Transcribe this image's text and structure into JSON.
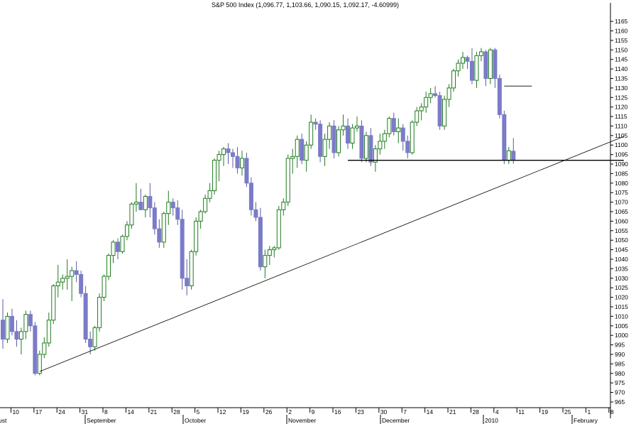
{
  "chart_data": {
    "type": "candlestick",
    "title": "S&P 500 Index (1,096.77, 1,103.66, 1,090.15, 1,092.17, -4.60999)",
    "ylim": [
      962,
      1171
    ],
    "y_ticks": [
      965,
      970,
      975,
      980,
      985,
      990,
      995,
      1000,
      1005,
      1010,
      1015,
      1020,
      1025,
      1030,
      1035,
      1040,
      1045,
      1050,
      1055,
      1060,
      1065,
      1070,
      1075,
      1080,
      1085,
      1090,
      1095,
      1100,
      1105,
      1110,
      1115,
      1120,
      1125,
      1130,
      1135,
      1140,
      1145,
      1150,
      1155,
      1160,
      1165
    ],
    "x_tick_labels": [
      "10",
      "17",
      "24",
      "31",
      "8",
      "14",
      "21",
      "28",
      "5",
      "12",
      "19",
      "26",
      "2",
      "9",
      "16",
      "23",
      "30",
      "7",
      "14",
      "21",
      "28",
      "4",
      "11",
      "19",
      "25",
      "1",
      "8"
    ],
    "month_labels": [
      "ust",
      "September",
      "October",
      "November",
      "December",
      "2010",
      "February"
    ],
    "colors": {
      "up": "#1e7b1e",
      "down": "#7b7bc8",
      "line": "#000000",
      "grid_text": "#000000"
    },
    "candles": [
      [
        1008.0,
        1019.0,
        993.0,
        998.0
      ],
      [
        998.0,
        1012.0,
        996.0,
        1010.0
      ],
      [
        1010.0,
        1014.0,
        1000.0,
        1002.0
      ],
      [
        1002.0,
        1008.0,
        994.0,
        998.0
      ],
      [
        998.0,
        1004.0,
        990.0,
        1002.0
      ],
      [
        1002.0,
        1013.0,
        998.0,
        1011.0
      ],
      [
        1011.0,
        1013.0,
        1002.0,
        1005.0
      ],
      [
        1005.0,
        1007.0,
        979.0,
        980.0
      ],
      [
        980.0,
        992.0,
        979.0,
        990.0
      ],
      [
        990.0,
        999.0,
        988.0,
        996.0
      ],
      [
        996.0,
        1012.0,
        994.0,
        1008.0
      ],
      [
        1008.0,
        1027.0,
        1006.0,
        1026.0
      ],
      [
        1026.0,
        1037.0,
        1020.0,
        1028.0
      ],
      [
        1028.0,
        1032.0,
        1024.0,
        1030.0
      ],
      [
        1030.0,
        1040.0,
        1024.0,
        1031.0
      ],
      [
        1031.0,
        1036.0,
        1018.0,
        1034.0
      ],
      [
        1034.0,
        1039.0,
        1028.0,
        1032.0
      ],
      [
        1032.0,
        1034.0,
        1020.0,
        1022.0
      ],
      [
        1022.0,
        1026.0,
        996.0,
        998.0
      ],
      [
        998.0,
        1002.0,
        990.0,
        994.0
      ],
      [
        994.0,
        1005.0,
        992.0,
        1004.0
      ],
      [
        1004.0,
        1022.0,
        1002.0,
        1020.0
      ],
      [
        1020.0,
        1032.0,
        1018.0,
        1031.0
      ],
      [
        1031.0,
        1043.0,
        1029.0,
        1042.0
      ],
      [
        1042.0,
        1050.0,
        1038.0,
        1049.0
      ],
      [
        1049.0,
        1051.0,
        1040.0,
        1044.0
      ],
      [
        1044.0,
        1053.0,
        1043.0,
        1052.0
      ],
      [
        1052.0,
        1060.0,
        1050.0,
        1058.0
      ],
      [
        1058.0,
        1070.0,
        1056.0,
        1069.0
      ],
      [
        1069.0,
        1080.0,
        1065.0,
        1070.0
      ],
      [
        1070.0,
        1077.0,
        1067.0,
        1066.0
      ],
      [
        1066.0,
        1074.0,
        1062.0,
        1073.0
      ],
      [
        1073.0,
        1080.0,
        1062.0,
        1067.0
      ],
      [
        1067.0,
        1070.0,
        1053.0,
        1056.0
      ],
      [
        1056.0,
        1061.0,
        1046.0,
        1049.0
      ],
      [
        1049.0,
        1065.0,
        1046.0,
        1064.0
      ],
      [
        1064.0,
        1076.0,
        1058.0,
        1070.0
      ],
      [
        1070.0,
        1072.0,
        1063.0,
        1067.0
      ],
      [
        1067.0,
        1071.0,
        1058.0,
        1061.0
      ],
      [
        1061.0,
        1066.0,
        1024.0,
        1030.0
      ],
      [
        1030.0,
        1040.0,
        1021.0,
        1026.0
      ],
      [
        1026.0,
        1045.0,
        1024.0,
        1044.0
      ],
      [
        1044.0,
        1062.0,
        1042.0,
        1060.0
      ],
      [
        1060.0,
        1066.0,
        1056.0,
        1065.0
      ],
      [
        1065.0,
        1074.0,
        1064.0,
        1072.0
      ],
      [
        1072.0,
        1080.0,
        1070.0,
        1076.0
      ],
      [
        1076.0,
        1093.0,
        1074.0,
        1092.0
      ],
      [
        1092.0,
        1097.0,
        1081.0,
        1095.0
      ],
      [
        1095.0,
        1099.0,
        1089.0,
        1098.0
      ],
      [
        1098.0,
        1101.0,
        1090.0,
        1096.0
      ],
      [
        1096.0,
        1098.0,
        1088.0,
        1094.0
      ],
      [
        1094.0,
        1099.0,
        1085.0,
        1088.0
      ],
      [
        1088.0,
        1097.0,
        1084.0,
        1093.0
      ],
      [
        1093.0,
        1096.0,
        1078.0,
        1080.0
      ],
      [
        1080.0,
        1083.0,
        1063.0,
        1066.0
      ],
      [
        1066.0,
        1070.0,
        1060.0,
        1062.0
      ],
      [
        1062.0,
        1067.0,
        1034.0,
        1036.0
      ],
      [
        1036.0,
        1045.0,
        1030.0,
        1042.0
      ],
      [
        1042.0,
        1047.0,
        1037.0,
        1045.0
      ],
      [
        1045.0,
        1047.0,
        1041.0,
        1046.0
      ],
      [
        1046.0,
        1068.0,
        1045.0,
        1066.0
      ],
      [
        1066.0,
        1072.0,
        1063.0,
        1070.0
      ],
      [
        1070.0,
        1095.0,
        1068.0,
        1093.0
      ],
      [
        1093.0,
        1098.0,
        1085.0,
        1094.0
      ],
      [
        1094.0,
        1105.0,
        1088.0,
        1103.0
      ],
      [
        1103.0,
        1106.0,
        1090.0,
        1092.0
      ],
      [
        1092.0,
        1102.0,
        1086.0,
        1100.0
      ],
      [
        1100.0,
        1116.0,
        1098.0,
        1112.0
      ],
      [
        1112.0,
        1114.0,
        1108.0,
        1111.0
      ],
      [
        1111.0,
        1113.0,
        1091.0,
        1094.0
      ],
      [
        1094.0,
        1106.0,
        1089.0,
        1103.0
      ],
      [
        1103.0,
        1112.0,
        1098.0,
        1110.0
      ],
      [
        1110.0,
        1113.0,
        1093.0,
        1096.0
      ],
      [
        1096.0,
        1110.0,
        1094.0,
        1108.0
      ],
      [
        1108.0,
        1116.0,
        1105.0,
        1110.0
      ],
      [
        1110.0,
        1114.0,
        1098.0,
        1101.0
      ],
      [
        1101.0,
        1111.0,
        1098.0,
        1109.0
      ],
      [
        1109.0,
        1115.0,
        1107.0,
        1110.0
      ],
      [
        1110.0,
        1113.0,
        1091.0,
        1093.0
      ],
      [
        1093.0,
        1107.0,
        1091.0,
        1105.0
      ],
      [
        1105.0,
        1109.0,
        1089.0,
        1091.0
      ],
      [
        1091.0,
        1100.0,
        1086.0,
        1098.0
      ],
      [
        1098.0,
        1106.0,
        1095.0,
        1102.0
      ],
      [
        1102.0,
        1108.0,
        1098.0,
        1106.0
      ],
      [
        1106.0,
        1115.0,
        1104.0,
        1114.0
      ],
      [
        1114.0,
        1117.0,
        1105.0,
        1107.0
      ],
      [
        1107.0,
        1114.0,
        1101.0,
        1109.0
      ],
      [
        1109.0,
        1111.0,
        1097.0,
        1102.0
      ],
      [
        1102.0,
        1105.0,
        1093.0,
        1096.0
      ],
      [
        1096.0,
        1113.0,
        1095.0,
        1112.0
      ],
      [
        1112.0,
        1120.0,
        1110.0,
        1118.0
      ],
      [
        1118.0,
        1122.0,
        1113.0,
        1120.0
      ],
      [
        1120.0,
        1128.0,
        1117.0,
        1125.0
      ],
      [
        1125.0,
        1130.0,
        1122.0,
        1127.0
      ],
      [
        1127.0,
        1131.0,
        1125.0,
        1126.0
      ],
      [
        1126.0,
        1128.0,
        1108.0,
        1110.0
      ],
      [
        1110.0,
        1126.0,
        1108.0,
        1124.0
      ],
      [
        1124.0,
        1132.0,
        1120.0,
        1130.0
      ],
      [
        1130.0,
        1140.0,
        1128.0,
        1139.0
      ],
      [
        1139.0,
        1145.0,
        1136.0,
        1143.0
      ],
      [
        1143.0,
        1149.0,
        1140.0,
        1146.0
      ],
      [
        1146.0,
        1147.0,
        1140.0,
        1144.0
      ],
      [
        1144.0,
        1151.0,
        1132.0,
        1134.0
      ],
      [
        1134.0,
        1149.0,
        1130.0,
        1147.0
      ],
      [
        1147.0,
        1151.0,
        1144.0,
        1149.0
      ],
      [
        1149.0,
        1150.0,
        1131.0,
        1135.0
      ],
      [
        1135.0,
        1151.0,
        1132.0,
        1150.0
      ],
      [
        1150.0,
        1151.0,
        1130.0,
        1135.0
      ],
      [
        1135.0,
        1137.0,
        1114.0,
        1116.0
      ],
      [
        1116.0,
        1118.0,
        1090.0,
        1092.0
      ],
      [
        1092.0,
        1099.0,
        1090.0,
        1097.0
      ],
      [
        1096.77,
        1103.66,
        1090.15,
        1092.17
      ]
    ],
    "lines": [
      {
        "name": "trendline",
        "points": [
          [
            8,
            981
          ],
          [
            135,
            1104.5
          ]
        ]
      },
      {
        "name": "support",
        "points": [
          [
            75,
            1092
          ],
          [
            135,
            1092
          ]
        ]
      },
      {
        "name": "resistance",
        "points": [
          [
            109,
            1131
          ],
          [
            115,
            1131
          ]
        ]
      }
    ]
  }
}
